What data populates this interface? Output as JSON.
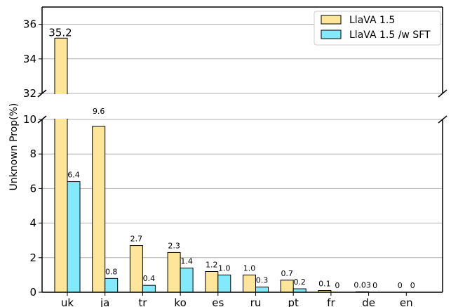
{
  "chart_data": {
    "type": "bar",
    "broken_axis": true,
    "ylabel": "Unknown Prop(%)",
    "categories": [
      "uk",
      "ja",
      "tr",
      "ko",
      "es",
      "ru",
      "pt",
      "fr",
      "de",
      "en"
    ],
    "series": [
      {
        "name": "LlaVA 1.5",
        "color": "#fde59a",
        "values": [
          35.2,
          9.6,
          2.7,
          2.3,
          1.2,
          1.0,
          0.7,
          0.1,
          0.03,
          0
        ],
        "labels": [
          "35.2",
          "9.6",
          "2.7",
          "2.3",
          "1.2",
          "1.0",
          "0.7",
          "0.1",
          "0.03",
          "0"
        ]
      },
      {
        "name": "LlaVA 1.5 /w SFT",
        "color": "#83e9fb",
        "values": [
          6.4,
          0.8,
          0.4,
          1.4,
          1.0,
          0.3,
          0.2,
          0,
          0,
          0
        ],
        "labels": [
          "6.4",
          "0.8",
          "0.4",
          "1.4",
          "1.0",
          "0.3",
          "0.2",
          "0",
          "0",
          "0"
        ]
      }
    ],
    "upper_ylim": [
      32,
      37
    ],
    "upper_yticks": [
      32,
      34,
      36
    ],
    "lower_ylim": [
      0,
      10
    ],
    "lower_yticks": [
      0,
      2,
      4,
      6,
      8,
      10
    ],
    "grid": "horizontal",
    "legend_position": "top-right"
  }
}
